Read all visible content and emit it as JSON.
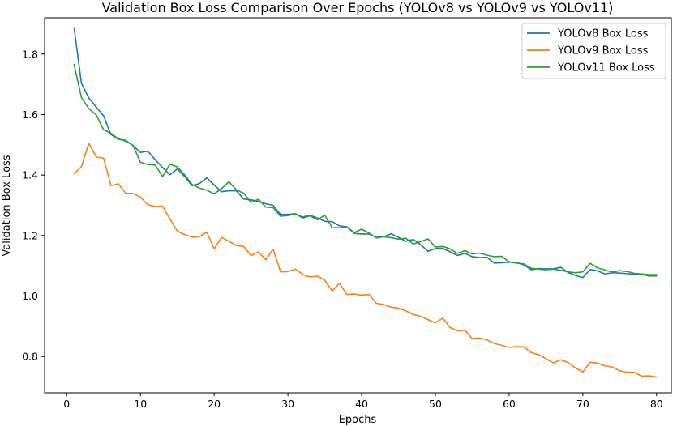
{
  "chart_data": {
    "type": "line",
    "title": "Validation Box Loss Comparison Over Epochs (YOLOv8 vs YOLOv9 vs YOLOv11)",
    "xlabel": "Epochs",
    "ylabel": "Validation Box Loss",
    "xlim": [
      -3,
      82
    ],
    "ylim": [
      0.68,
      1.92
    ],
    "xticks": [
      0,
      10,
      20,
      30,
      40,
      50,
      60,
      70,
      80
    ],
    "xtick_labels": [
      "0",
      "10",
      "20",
      "30",
      "40",
      "50",
      "60",
      "70",
      "80"
    ],
    "yticks": [
      0.8,
      1.0,
      1.2,
      1.4,
      1.6,
      1.8
    ],
    "ytick_labels": [
      "0.8",
      "1.0",
      "1.2",
      "1.4",
      "1.6",
      "1.8"
    ],
    "grid": false,
    "legend_position": "top-right",
    "x": [
      1,
      2,
      3,
      4,
      5,
      6,
      7,
      8,
      9,
      10,
      11,
      12,
      13,
      14,
      15,
      16,
      17,
      18,
      19,
      20,
      21,
      22,
      23,
      24,
      25,
      26,
      27,
      28,
      29,
      30,
      31,
      32,
      33,
      34,
      35,
      36,
      37,
      38,
      39,
      40,
      41,
      42,
      43,
      44,
      45,
      46,
      47,
      48,
      49,
      50,
      51,
      52,
      53,
      54,
      55,
      56,
      57,
      58,
      59,
      60,
      61,
      62,
      63,
      64,
      65,
      66,
      67,
      68,
      69,
      70,
      71,
      72,
      73,
      74,
      75,
      76,
      77,
      78,
      79,
      80
    ],
    "series": [
      {
        "name": "YOLOv8 Box Loss",
        "color": "#1f77b4",
        "values": [
          1.887,
          1.703,
          1.655,
          1.625,
          1.596,
          1.534,
          1.518,
          1.515,
          1.497,
          1.475,
          1.479,
          1.451,
          1.425,
          1.401,
          1.42,
          1.395,
          1.365,
          1.372,
          1.391,
          1.367,
          1.345,
          1.348,
          1.348,
          1.321,
          1.318,
          1.313,
          1.305,
          1.3,
          1.27,
          1.27,
          1.272,
          1.261,
          1.267,
          1.258,
          1.247,
          1.246,
          1.232,
          1.229,
          1.207,
          1.205,
          1.205,
          1.194,
          1.196,
          1.206,
          1.194,
          1.181,
          1.187,
          1.17,
          1.148,
          1.157,
          1.158,
          1.146,
          1.134,
          1.141,
          1.13,
          1.127,
          1.128,
          1.109,
          1.11,
          1.112,
          1.111,
          1.103,
          1.087,
          1.091,
          1.09,
          1.09,
          1.095,
          1.078,
          1.068,
          1.061,
          1.088,
          1.083,
          1.073,
          1.077,
          1.076,
          1.074,
          1.072,
          1.072,
          1.066,
          1.066
        ]
      },
      {
        "name": "YOLOv9 Box Loss",
        "color": "#ff7f0e",
        "values": [
          1.404,
          1.428,
          1.505,
          1.46,
          1.456,
          1.365,
          1.371,
          1.34,
          1.339,
          1.327,
          1.302,
          1.296,
          1.297,
          1.255,
          1.215,
          1.203,
          1.195,
          1.197,
          1.211,
          1.156,
          1.194,
          1.181,
          1.167,
          1.164,
          1.134,
          1.146,
          1.12,
          1.155,
          1.08,
          1.081,
          1.089,
          1.072,
          1.063,
          1.066,
          1.052,
          1.017,
          1.042,
          1.005,
          1.007,
          1.003,
          1.005,
          0.976,
          0.972,
          0.963,
          0.96,
          0.951,
          0.939,
          0.933,
          0.922,
          0.911,
          0.927,
          0.896,
          0.885,
          0.887,
          0.859,
          0.861,
          0.855,
          0.843,
          0.837,
          0.83,
          0.833,
          0.832,
          0.813,
          0.806,
          0.793,
          0.779,
          0.789,
          0.78,
          0.762,
          0.749,
          0.781,
          0.778,
          0.769,
          0.765,
          0.753,
          0.748,
          0.747,
          0.735,
          0.736,
          0.732
        ]
      },
      {
        "name": "YOLOv11 Box Loss",
        "color": "#2ca02c",
        "values": [
          1.766,
          1.656,
          1.62,
          1.599,
          1.55,
          1.538,
          1.52,
          1.512,
          1.498,
          1.442,
          1.435,
          1.433,
          1.395,
          1.436,
          1.427,
          1.401,
          1.369,
          1.357,
          1.35,
          1.338,
          1.355,
          1.378,
          1.351,
          1.34,
          1.309,
          1.32,
          1.294,
          1.292,
          1.264,
          1.266,
          1.272,
          1.258,
          1.265,
          1.252,
          1.267,
          1.226,
          1.226,
          1.228,
          1.21,
          1.221,
          1.208,
          1.192,
          1.196,
          1.193,
          1.188,
          1.191,
          1.172,
          1.18,
          1.189,
          1.162,
          1.164,
          1.156,
          1.141,
          1.15,
          1.139,
          1.142,
          1.135,
          1.13,
          1.131,
          1.113,
          1.109,
          1.106,
          1.092,
          1.089,
          1.087,
          1.089,
          1.085,
          1.08,
          1.077,
          1.08,
          1.108,
          1.093,
          1.086,
          1.079,
          1.084,
          1.081,
          1.075,
          1.073,
          1.071,
          1.071
        ]
      }
    ]
  }
}
